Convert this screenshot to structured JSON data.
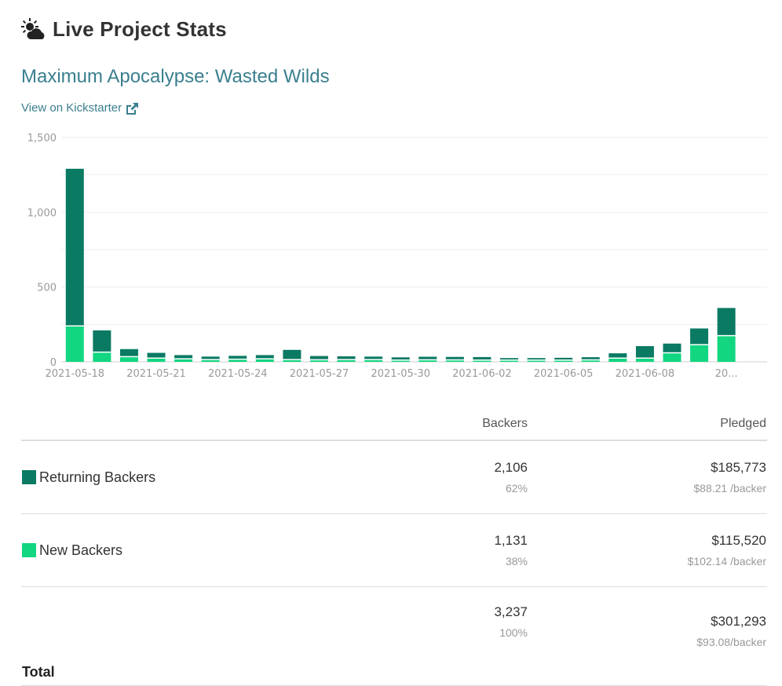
{
  "header": {
    "title": "Live Project Stats",
    "icon": "sun-cloud-icon"
  },
  "project": {
    "title": "Maximum Apocalypse: Wasted Wilds",
    "link_label": "View on Kickstarter",
    "link_icon": "external-link-icon"
  },
  "colors": {
    "returning": "#0a7a63",
    "new": "#12d680",
    "link": "#3a7f8f"
  },
  "chart_data": {
    "type": "bar",
    "stacked": true,
    "ylim": [
      0,
      1500
    ],
    "yticks": [
      "0",
      "500",
      "1,000",
      "1,500"
    ],
    "ytick_values": [
      0,
      500,
      1000,
      1500
    ],
    "grid": true,
    "categories": [
      "2021-05-18",
      "2021-05-19",
      "2021-05-20",
      "2021-05-21",
      "2021-05-22",
      "2021-05-23",
      "2021-05-24",
      "2021-05-25",
      "2021-05-26",
      "2021-05-27",
      "2021-05-28",
      "2021-05-29",
      "2021-05-30",
      "2021-05-31",
      "2021-06-01",
      "2021-06-02",
      "2021-06-03",
      "2021-06-04",
      "2021-06-05",
      "2021-06-06",
      "2021-06-07",
      "2021-06-08",
      "2021-06-09",
      "2021-06-10",
      "2021-06-11",
      "2021-06-12"
    ],
    "xtick_labels": [
      {
        "index": 0,
        "label": "2021-05-18"
      },
      {
        "index": 3,
        "label": "2021-05-21"
      },
      {
        "index": 6,
        "label": "2021-05-24"
      },
      {
        "index": 9,
        "label": "2021-05-27"
      },
      {
        "index": 12,
        "label": "2021-05-30"
      },
      {
        "index": 15,
        "label": "2021-06-02"
      },
      {
        "index": 18,
        "label": "2021-06-05"
      },
      {
        "index": 21,
        "label": "2021-06-08"
      },
      {
        "index": 24,
        "label": "20..."
      }
    ],
    "series": [
      {
        "name": "New Backers",
        "color": "#12d680",
        "values": [
          240,
          65,
          35,
          25,
          20,
          15,
          18,
          20,
          15,
          14,
          15,
          15,
          12,
          14,
          13,
          12,
          12,
          12,
          12,
          13,
          25,
          25,
          60,
          115,
          175,
          0
        ]
      },
      {
        "name": "Returning Backers",
        "color": "#0a7a63",
        "values": [
          1050,
          145,
          50,
          35,
          25,
          20,
          22,
          25,
          65,
          25,
          22,
          20,
          18,
          20,
          20,
          20,
          13,
          13,
          15,
          18,
          32,
          80,
          62,
          108,
          185,
          0
        ]
      }
    ]
  },
  "table": {
    "headers": {
      "backers": "Backers",
      "pledged": "Pledged"
    },
    "rows": [
      {
        "label": "Returning Backers",
        "swatch": "#0a7a63",
        "backers": "2,106",
        "backers_pct": "62%",
        "pledged": "$185,773",
        "per_backer": "$88.21 /backer"
      },
      {
        "label": "New Backers",
        "swatch": "#12d680",
        "backers": "1,131",
        "backers_pct": "38%",
        "pledged": "$115,520",
        "per_backer": "$102.14 /backer"
      }
    ],
    "total": {
      "label": "Total",
      "backers": "3,237",
      "backers_pct": "100%",
      "pledged": "$301,293",
      "per_backer": "$93.08/backer"
    }
  }
}
